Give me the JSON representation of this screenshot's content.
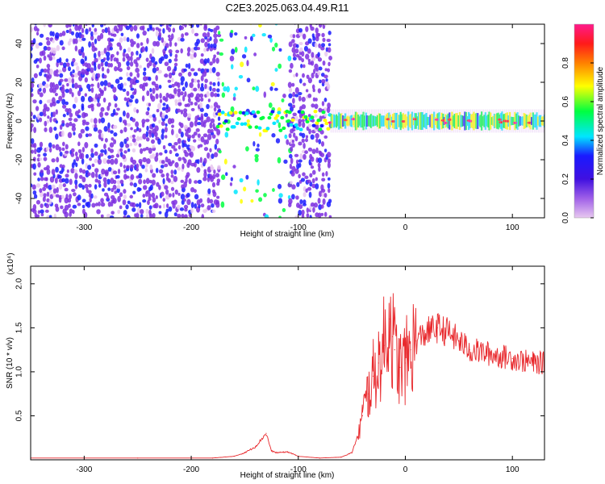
{
  "title": "C2E3.2025.063.04.49.R11",
  "chart_data": [
    {
      "type": "heatmap",
      "xlabel": "Height of straight line (km)",
      "ylabel": "Frequency (Hz)",
      "xlim": [
        -350,
        130
      ],
      "ylim": [
        -50,
        50
      ],
      "xticks": [
        "-300",
        "-200",
        "-100",
        "0",
        "100"
      ],
      "yticks": [
        "-40",
        "-20",
        "0",
        "20",
        "40"
      ],
      "colorbar": {
        "label": "Normalized spectral amplitude",
        "range": [
          0,
          1
        ],
        "ticks": [
          "0.0",
          "0.2",
          "0.4",
          "0.6",
          "0.8"
        ],
        "colors": [
          "#e8c8f0",
          "#7d2ee0",
          "#1a1aff",
          "#00e6ff",
          "#00ff40",
          "#ffff00",
          "#ff2020",
          "#ff1a8c"
        ]
      },
      "regions": [
        {
          "x_from": -350,
          "x_to": -175,
          "pattern": "broadband speckle",
          "level": 0.15
        },
        {
          "x_from": -175,
          "x_to": -108,
          "pattern": "sparse speckle with band near 0 Hz",
          "level": 0.4
        },
        {
          "x_from": -108,
          "x_to": -70,
          "pattern": "broadband speckle",
          "level": 0.15
        },
        {
          "x_from": -70,
          "x_to": 130,
          "pattern": "narrow band at 0 Hz",
          "level": 0.55
        }
      ]
    },
    {
      "type": "line",
      "xlabel": "Height of straight line (km)",
      "ylabel": "SNR (10 * v/v)",
      "y_multiplier": "(x10⁴)",
      "xlim": [
        -350,
        130
      ],
      "ylim": [
        0,
        2.2
      ],
      "xticks": [
        "-300",
        "-200",
        "-100",
        "0",
        "100"
      ],
      "yticks": [
        "0.5",
        "1.0",
        "1.5",
        "2.0"
      ],
      "color": "#e8282c",
      "series": [
        {
          "x": [
            -350,
            -300,
            -250,
            -200,
            -180,
            -160,
            -150,
            -140,
            -130,
            -125,
            -120,
            -110,
            -100,
            -80,
            -60,
            -50,
            -45,
            -40,
            -35,
            -30,
            -25,
            -20,
            -15,
            -12,
            -10,
            -5,
            0,
            5,
            10,
            20,
            30,
            40,
            50,
            60,
            80,
            100,
            120,
            130
          ],
          "y": [
            0.02,
            0.02,
            0.02,
            0.02,
            0.02,
            0.04,
            0.08,
            0.15,
            0.3,
            0.1,
            0.08,
            0.09,
            0.04,
            0.02,
            0.03,
            0.08,
            0.25,
            0.5,
            0.75,
            0.95,
            1.1,
            1.3,
            1.6,
            1.4,
            1.25,
            1.05,
            1.1,
            1.25,
            1.35,
            1.45,
            1.5,
            1.45,
            1.35,
            1.25,
            1.2,
            1.15,
            1.1,
            1.1
          ]
        }
      ]
    }
  ]
}
